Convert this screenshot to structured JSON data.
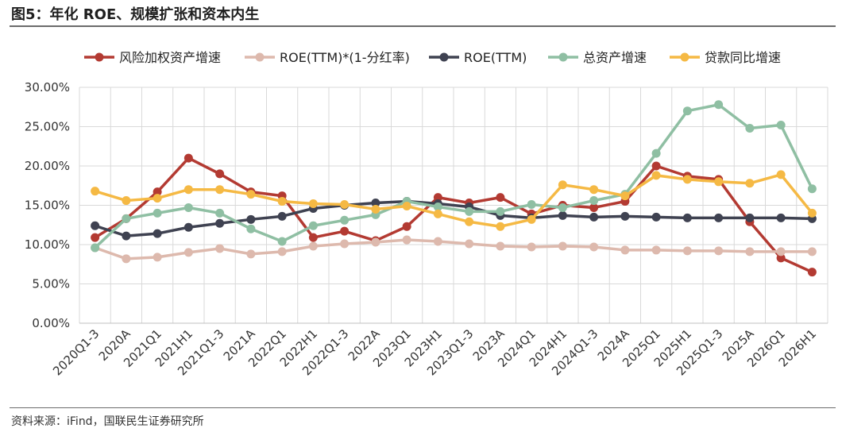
{
  "figure": {
    "title": "图5：年化 ROE、规模扩张和资本内生",
    "source": "资料来源：iFind，国联民生证券研究所"
  },
  "chart_data": {
    "type": "line",
    "title": "",
    "xlabel": "",
    "ylabel": "",
    "ylim": [
      0,
      30
    ],
    "y_ticks": [
      "0.00%",
      "5.00%",
      "10.00%",
      "15.00%",
      "20.00%",
      "25.00%",
      "30.00%"
    ],
    "grid": "on",
    "legend_position": "top",
    "categories": [
      "2020Q1-3",
      "2020A",
      "2021Q1",
      "2021H1",
      "2021Q1-3",
      "2021A",
      "2022Q1",
      "2022H1",
      "2022Q1-3",
      "2022A",
      "2023Q1",
      "2023H1",
      "2023Q1-3",
      "2023A",
      "2024Q1",
      "2024H1",
      "2024Q1-3",
      "2024A",
      "2025Q1",
      "2025H1",
      "2025Q1-3",
      "2025A",
      "2026Q1",
      "2026H1"
    ],
    "series": [
      {
        "name": "风险加权资产增速",
        "color": "#b33a32",
        "values": [
          10.9,
          13.3,
          16.7,
          21.0,
          19.0,
          16.7,
          16.2,
          10.9,
          11.7,
          10.5,
          12.3,
          16.0,
          15.3,
          16.0,
          13.9,
          15.0,
          14.7,
          15.5,
          20.0,
          18.7,
          18.3,
          12.9,
          8.3,
          6.5
        ]
      },
      {
        "name": "ROE(TTM)*(1-分红率)",
        "color": "#ddb9ad",
        "values": [
          9.6,
          8.2,
          8.4,
          9.0,
          9.5,
          8.8,
          9.1,
          9.8,
          10.1,
          10.3,
          10.6,
          10.4,
          10.1,
          9.8,
          9.7,
          9.8,
          9.7,
          9.3,
          9.3,
          9.2,
          9.2,
          9.1,
          9.1,
          9.1
        ]
      },
      {
        "name": "ROE(TTM)",
        "color": "#3f4251",
        "values": [
          12.4,
          11.1,
          11.4,
          12.2,
          12.7,
          13.2,
          13.6,
          14.6,
          15.0,
          15.3,
          15.5,
          15.2,
          14.8,
          13.7,
          13.4,
          13.7,
          13.5,
          13.6,
          13.5,
          13.4,
          13.4,
          13.4,
          13.4,
          13.3
        ]
      },
      {
        "name": "总资产增速",
        "color": "#8fbfa3",
        "values": [
          9.6,
          13.3,
          14.0,
          14.7,
          14.0,
          12.0,
          10.4,
          12.4,
          13.1,
          13.8,
          15.5,
          14.8,
          14.2,
          14.2,
          15.1,
          14.7,
          15.6,
          16.4,
          21.6,
          27.0,
          27.8,
          24.8,
          25.2,
          17.1
        ]
      },
      {
        "name": "贷款同比增速",
        "color": "#f5b944",
        "values": [
          16.8,
          15.6,
          15.9,
          17.0,
          17.0,
          16.4,
          15.5,
          15.2,
          15.1,
          14.5,
          14.9,
          13.9,
          12.9,
          12.3,
          13.2,
          17.6,
          17.0,
          16.2,
          18.8,
          18.3,
          18.0,
          17.8,
          18.9,
          14.0
        ]
      }
    ]
  }
}
